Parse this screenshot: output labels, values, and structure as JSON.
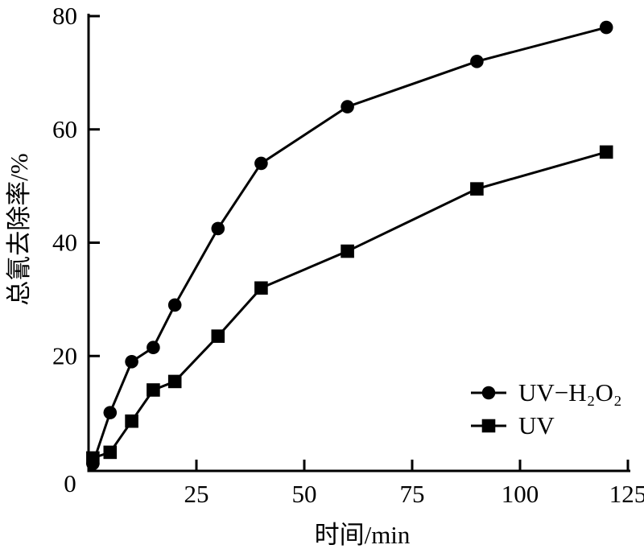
{
  "chart_data": {
    "type": "line",
    "title": "",
    "xlabel": "时间/min",
    "ylabel": "总氰去除率/%",
    "xlim": [
      0,
      125
    ],
    "ylim": [
      0,
      80
    ],
    "x_ticks": [
      25,
      50,
      75,
      100,
      125
    ],
    "y_ticks": [
      20,
      40,
      60,
      80
    ],
    "origin_label": "0",
    "grid": false,
    "legend_position": "inside-lower-right",
    "ink_color": "#000000",
    "background_color": "#ffffff",
    "series": [
      {
        "name": "UV−H₂O₂",
        "marker": "circle",
        "color": "#000000",
        "x": [
          1,
          5,
          10,
          15,
          20,
          30,
          40,
          60,
          90,
          120
        ],
        "y": [
          1,
          10,
          19,
          21.5,
          29,
          42.5,
          54,
          64,
          72,
          78
        ]
      },
      {
        "name": "UV",
        "marker": "square",
        "color": "#000000",
        "x": [
          1,
          5,
          10,
          15,
          20,
          30,
          40,
          60,
          90,
          120
        ],
        "y": [
          2,
          3,
          8.5,
          14,
          15.5,
          23.5,
          32,
          38.5,
          49.5,
          56
        ]
      }
    ]
  }
}
